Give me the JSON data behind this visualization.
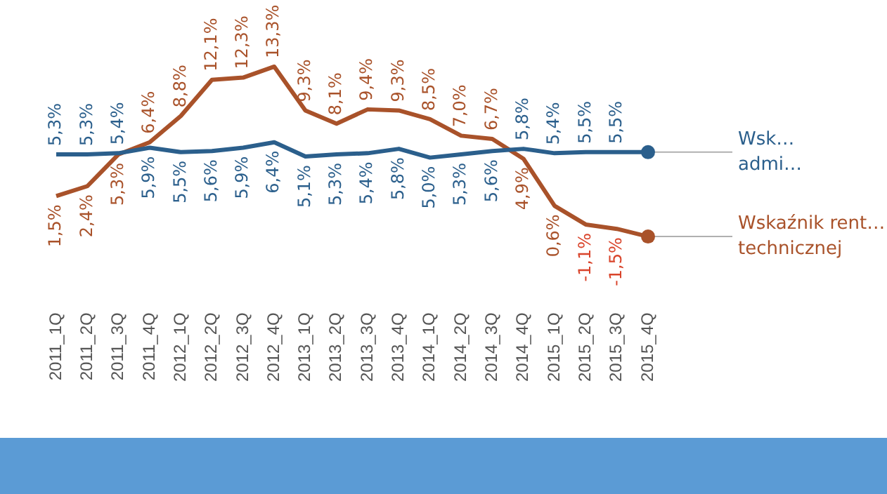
{
  "chart_data": {
    "type": "line",
    "categories": [
      "2011_1Q",
      "2011_2Q",
      "2011_3Q",
      "2011_4Q",
      "2012_1Q",
      "2012_2Q",
      "2012_3Q",
      "2012_4Q",
      "2013_1Q",
      "2013_2Q",
      "2013_3Q",
      "2013_4Q",
      "2014_1Q",
      "2014_2Q",
      "2014_3Q",
      "2014_4Q",
      "2015_1Q",
      "2015_2Q",
      "2015_3Q",
      "2015_4Q"
    ],
    "tick_labels": "x",
    "grid": false,
    "legend": false,
    "line_style": "solid",
    "series": [
      {
        "name": "Wsk… admi…",
        "color": "#2b5f8c",
        "values": [
          5.3,
          5.3,
          5.4,
          5.9,
          5.5,
          5.6,
          5.9,
          6.4,
          5.1,
          5.3,
          5.4,
          5.8,
          5.0,
          5.3,
          5.6,
          5.8,
          5.4,
          5.5,
          5.5,
          5.5
        ],
        "value_labels": [
          "5,3%",
          "5,3%",
          "5,4%",
          "5,9%",
          "5,5%",
          "5,6%",
          "5,9%",
          "6,4%",
          "5,1%",
          "5,3%",
          "5,4%",
          "5,8%",
          "5,0%",
          "5,3%",
          "5,6%",
          "5,8%",
          "5,4%",
          "5,5%",
          "5,5%",
          null
        ]
      },
      {
        "name": "Wskaźnik rent… technicznej",
        "color": "#a9522a",
        "values": [
          1.5,
          2.4,
          5.3,
          6.4,
          8.8,
          12.1,
          12.3,
          13.3,
          9.3,
          8.1,
          9.4,
          9.3,
          8.5,
          7.0,
          6.7,
          4.9,
          0.6,
          -1.1,
          -1.5,
          -2.2
        ],
        "value_labels": [
          "1,5%",
          "2,4%",
          "5,3%",
          "6,4%",
          "8,8%",
          "12,1%",
          "12,3%",
          "13,3%",
          "9,3%",
          "8,1%",
          "9,4%",
          "9,3%",
          "8,5%",
          "7,0%",
          "6,7%",
          "4,9%",
          "0,6%",
          "-1,1%",
          "-1,5%",
          null
        ]
      }
    ]
  }
}
